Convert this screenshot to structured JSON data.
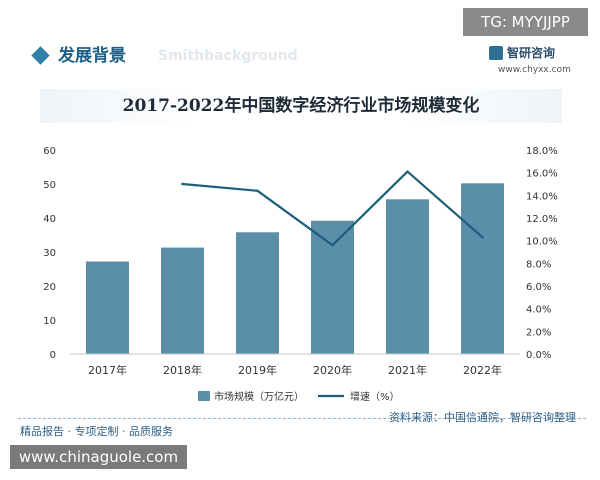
{
  "badge": {
    "tg": "TG: MYYJJPP"
  },
  "header": {
    "section_title": "发展背景",
    "watermark": "Smithbackground"
  },
  "brand": {
    "name": "智研咨询",
    "url": "www.chyxx.com"
  },
  "footer": {
    "left": "精品报告 · 专项定制 · 品质服务",
    "source": "资料来源：中国信通院，智研咨询整理"
  },
  "site_badge": "www.chinaguole.com",
  "colors": {
    "bar": "#5b8ea8",
    "line": "#1d5f7a",
    "title": "#1f5f86"
  },
  "chart_data": {
    "type": "bar",
    "title": "2017-2022年中国数字经济行业市场规模变化",
    "categories": [
      "2017年",
      "2018年",
      "2019年",
      "2020年",
      "2021年",
      "2022年"
    ],
    "series": [
      {
        "name": "市场规模（万亿元）",
        "type": "bar",
        "axis": "left",
        "values": [
          27.2,
          31.3,
          35.8,
          39.2,
          45.5,
          50.2
        ]
      },
      {
        "name": "增速（%）",
        "type": "line",
        "axis": "right",
        "values": [
          null,
          15.0,
          14.4,
          9.6,
          16.1,
          10.3
        ]
      }
    ],
    "ylim": [
      0,
      60
    ],
    "yticks": [
      "0",
      "10",
      "20",
      "30",
      "40",
      "50",
      "60"
    ],
    "y2lim": [
      0,
      18
    ],
    "y2ticks": [
      "0.0%",
      "2.0%",
      "4.0%",
      "6.0%",
      "8.0%",
      "10.0%",
      "12.0%",
      "14.0%",
      "16.0%",
      "18.0%"
    ],
    "legend": "bottom",
    "grid": false
  }
}
